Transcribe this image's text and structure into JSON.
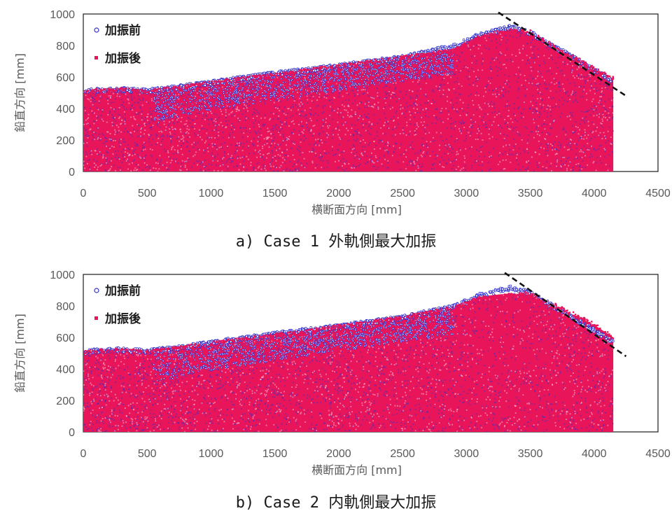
{
  "chart_data": [
    {
      "type": "scatter",
      "caption": "a) Case 1 外軌側最大加振",
      "xlabel": "横断面方向 [mm]",
      "ylabel": "鉛直方向 [mm]",
      "xlim": [
        0,
        4500
      ],
      "ylim": [
        0,
        1000
      ],
      "xticks": [
        "0",
        "500",
        "1000",
        "1500",
        "2000",
        "2500",
        "3000",
        "3500",
        "4000",
        "4500"
      ],
      "yticks": [
        "0",
        "200",
        "400",
        "600",
        "800",
        "1000"
      ],
      "grid": false,
      "legend_position": "top-left",
      "series": [
        {
          "name": "加振前",
          "color": "#3333cc",
          "marker": "circle",
          "surface_profile": {
            "x": [
              0,
              100,
              300,
              500,
              550,
              800,
              1000,
              1500,
              2000,
              2500,
              2900,
              3100,
              3350,
              3500,
              4000,
              4150
            ],
            "y": [
              520,
              530,
              535,
              525,
              530,
              555,
              580,
              635,
              685,
              740,
              810,
              880,
              930,
              895,
              660,
              585
            ]
          },
          "pocket_profile": {
            "x": [
              550,
              900,
              2900
            ],
            "y": [
              300,
              380,
              620
            ]
          }
        },
        {
          "name": "加振後",
          "color": "#e8155a",
          "marker": "square",
          "surface_profile": {
            "x": [
              0,
              100,
              300,
              500,
              550,
              800,
              1000,
              1500,
              2000,
              2500,
              2900,
              3100,
              3350,
              3500,
              4000,
              4150
            ],
            "y": [
              515,
              525,
              530,
              520,
              525,
              550,
              575,
              625,
              680,
              735,
              780,
              870,
              910,
              880,
              650,
              590
            ]
          },
          "pocket_profile": {
            "x": [
              550,
              900,
              2900
            ],
            "y": [
              300,
              380,
              620
            ]
          }
        }
      ],
      "annotations": [
        {
          "type": "dashed-line",
          "x": [
            3250,
            4250
          ],
          "y": [
            1010,
            480
          ]
        }
      ]
    },
    {
      "type": "scatter",
      "caption": "b) Case 2 内軌側最大加振",
      "xlabel": "横断面方向 [mm]",
      "ylabel": "鉛直方向 [mm]",
      "xlim": [
        0,
        4500
      ],
      "ylim": [
        0,
        1000
      ],
      "xticks": [
        "0",
        "500",
        "1000",
        "1500",
        "2000",
        "2500",
        "3000",
        "3500",
        "4000",
        "4500"
      ],
      "yticks": [
        "0",
        "200",
        "400",
        "600",
        "800",
        "1000"
      ],
      "grid": false,
      "legend_position": "top-left",
      "series": [
        {
          "name": "加振前",
          "color": "#3333cc",
          "marker": "circle",
          "surface_profile": {
            "x": [
              0,
              100,
              300,
              500,
              550,
              800,
              1000,
              1500,
              2000,
              2500,
              2900,
              3100,
              3350,
              3500,
              4000,
              4150
            ],
            "y": [
              520,
              530,
              535,
              525,
              530,
              555,
              580,
              635,
              685,
              740,
              810,
              880,
              930,
              895,
              660,
              585
            ]
          },
          "pocket_profile": {
            "x": [
              550,
              900,
              2900
            ],
            "y": [
              300,
              380,
              620
            ]
          }
        },
        {
          "name": "加振後",
          "color": "#e8155a",
          "marker": "square",
          "surface_profile": {
            "x": [
              0,
              100,
              300,
              500,
              550,
              800,
              1000,
              1500,
              2000,
              2500,
              2900,
              3100,
              3350,
              3500,
              4000,
              4150
            ],
            "y": [
              515,
              525,
              530,
              520,
              525,
              550,
              575,
              625,
              680,
              735,
              800,
              860,
              880,
              870,
              680,
              600
            ]
          },
          "pocket_profile": {
            "x": [
              550,
              900,
              2900
            ],
            "y": [
              300,
              380,
              620
            ]
          }
        }
      ],
      "annotations": [
        {
          "type": "dashed-line",
          "x": [
            3300,
            4250
          ],
          "y": [
            1010,
            480
          ]
        }
      ]
    }
  ]
}
